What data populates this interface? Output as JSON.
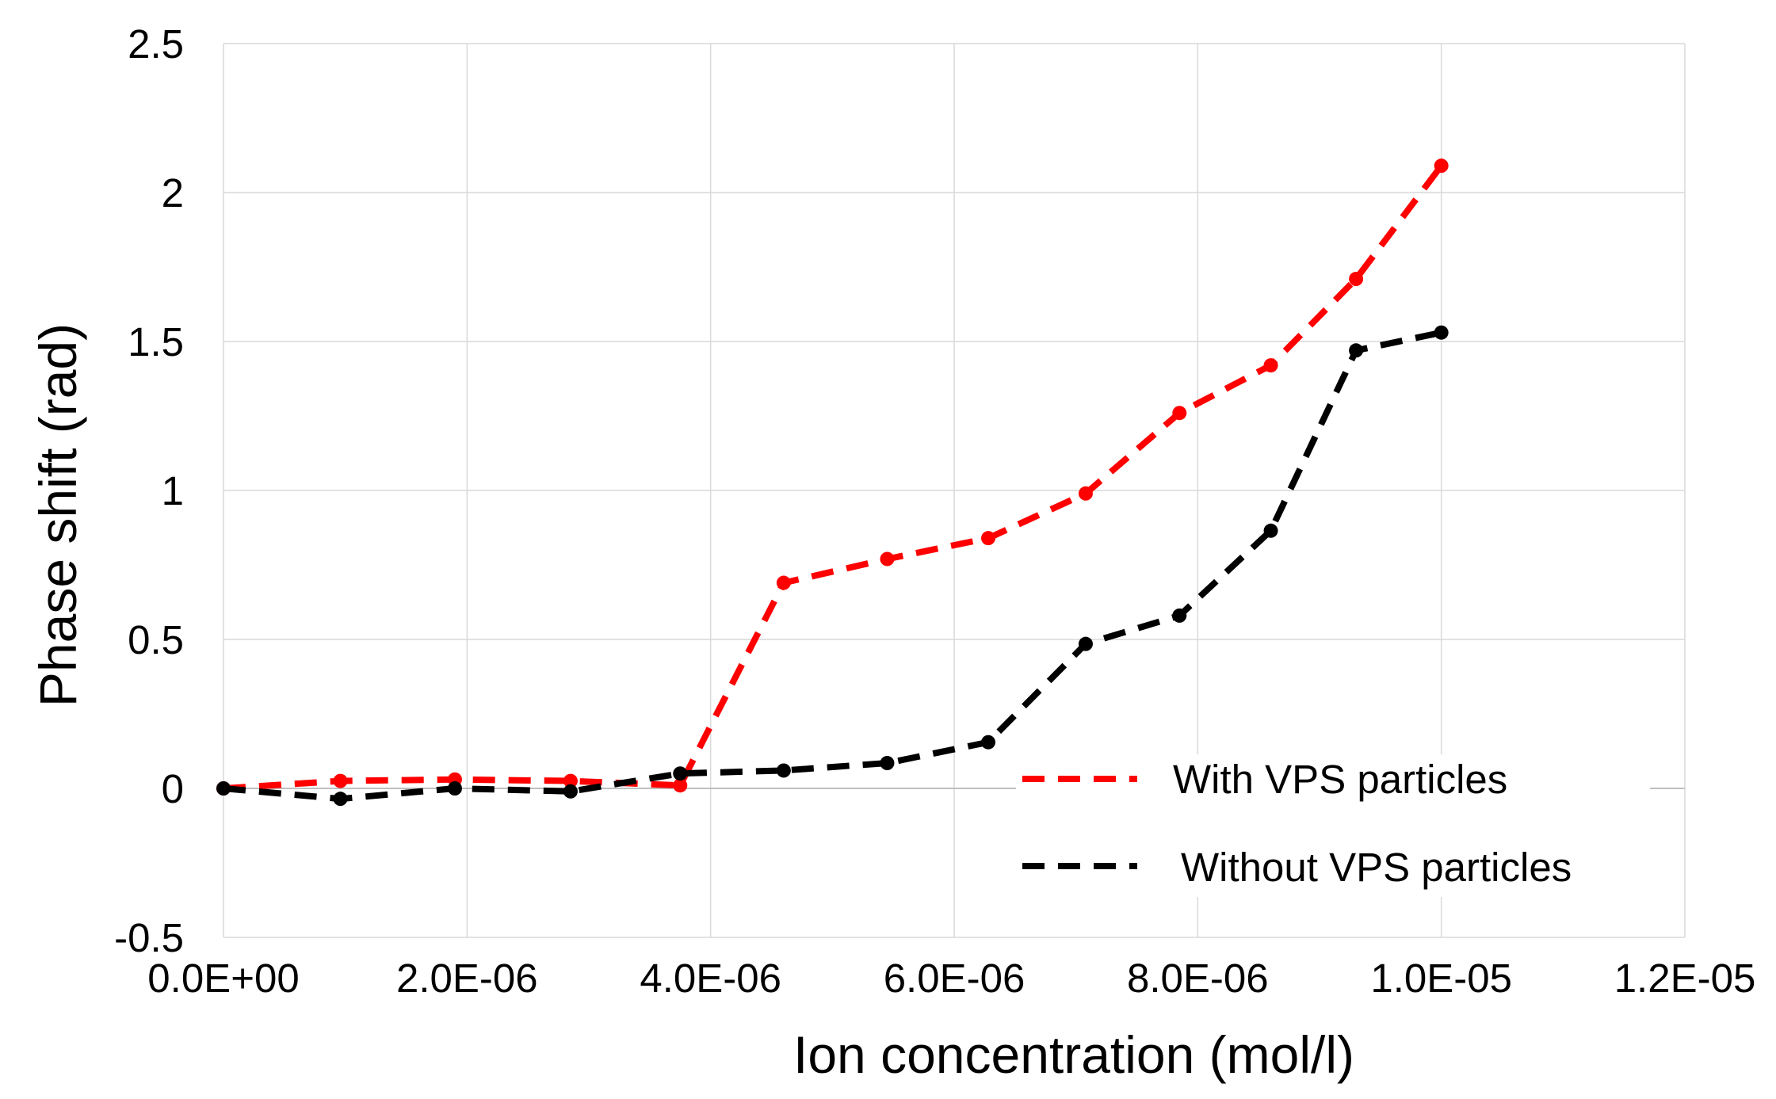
{
  "chart_data": {
    "type": "line",
    "title": "",
    "xlabel": "Ion concentration (mol/l)",
    "ylabel": "Phase shift (rad)",
    "xlim": [
      0,
      1.2e-05
    ],
    "ylim": [
      -0.5,
      2.5
    ],
    "x_ticks": [
      0,
      2e-06,
      4e-06,
      6e-06,
      8e-06,
      1e-05,
      1.2e-05
    ],
    "x_tick_labels": [
      "0.0E+00",
      "2.0E-06",
      "4.0E-06",
      "6.0E-06",
      "8.0E-06",
      "1.0E-05",
      "1.2E-05"
    ],
    "y_ticks": [
      -0.5,
      0,
      0.5,
      1,
      1.5,
      2,
      2.5
    ],
    "y_tick_labels": [
      "-0.5",
      "0",
      "0.5",
      "1",
      "1.5",
      "2",
      "2.5"
    ],
    "grid": true,
    "legend_position": "bottom-right",
    "series": [
      {
        "name": "With VPS particles",
        "color": "#ff0000",
        "x": [
          0,
          9.6e-07,
          1.9e-06,
          2.85e-06,
          3.75e-06,
          4.6e-06,
          5.45e-06,
          6.28e-06,
          7.08e-06,
          7.85e-06,
          8.6e-06,
          9.3e-06,
          1e-05
        ],
        "values": [
          0.0,
          0.025,
          0.03,
          0.025,
          0.01,
          0.69,
          0.77,
          0.84,
          0.99,
          1.26,
          1.42,
          1.71,
          2.09
        ]
      },
      {
        "name": "Without VPS particles",
        "color": "#000000",
        "x": [
          0,
          9.6e-07,
          1.9e-06,
          2.85e-06,
          3.75e-06,
          4.6e-06,
          5.45e-06,
          6.28e-06,
          7.08e-06,
          7.85e-06,
          8.6e-06,
          9.3e-06,
          1e-05
        ],
        "values": [
          0.0,
          -0.035,
          0.0,
          -0.01,
          0.05,
          0.06,
          0.085,
          0.155,
          0.485,
          0.58,
          0.865,
          1.47,
          1.53
        ]
      }
    ]
  }
}
